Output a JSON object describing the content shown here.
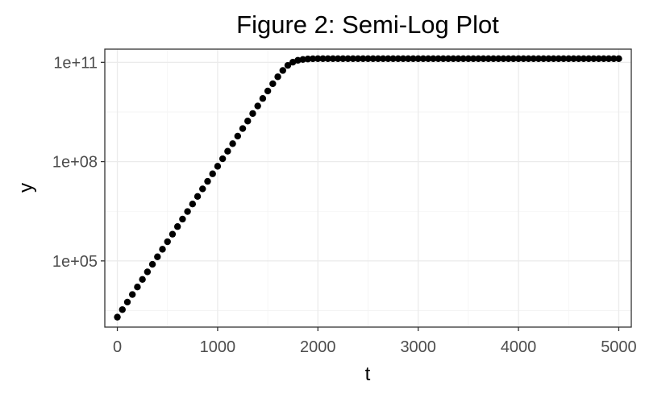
{
  "chart_data": {
    "type": "scatter",
    "title": "Figure 2: Semi-Log Plot",
    "xlabel": "t",
    "ylabel": "y",
    "y_scale": "log10",
    "xlim": [
      -125,
      5125
    ],
    "ylim": [
      1000,
      250000000000.0
    ],
    "x_ticks": [
      0,
      1000,
      2000,
      3000,
      4000,
      5000
    ],
    "x_tick_labels": [
      "0",
      "1000",
      "2000",
      "3000",
      "4000",
      "5000"
    ],
    "y_ticks": [
      100000,
      100000000,
      100000000000
    ],
    "y_tick_labels": [
      "1e+05",
      "1e+08",
      "1e+11"
    ],
    "grid": true,
    "point_color": "#000000",
    "series": [
      {
        "x": [
          0,
          50,
          100,
          150,
          200,
          250,
          300,
          350,
          400,
          450,
          500,
          550,
          600,
          650,
          700,
          750,
          800,
          850,
          900,
          950,
          1000,
          1050,
          1100,
          1150,
          1200,
          1250,
          1300,
          1350,
          1400,
          1450,
          1500,
          1550,
          1600,
          1650,
          1700,
          1750,
          1800,
          1850,
          1900,
          1950,
          2000,
          2050,
          2100,
          2150,
          2200,
          2250,
          2300,
          2350,
          2400,
          2450,
          2500,
          2550,
          2600,
          2650,
          2700,
          2750,
          2800,
          2850,
          2900,
          2950,
          3000,
          3050,
          3100,
          3150,
          3200,
          3250,
          3300,
          3350,
          3400,
          3450,
          3500,
          3550,
          3600,
          3650,
          3700,
          3750,
          3800,
          3850,
          3900,
          3950,
          4000,
          4050,
          4100,
          4150,
          4200,
          4250,
          4300,
          4350,
          4400,
          4450,
          4500,
          4550,
          4600,
          4650,
          4700,
          4750,
          4800,
          4850,
          4900,
          4950,
          5000
        ],
        "y": [
          2000,
          3380,
          5710,
          9650,
          16300,
          27600,
          46600,
          78800,
          133000,
          225000,
          380000,
          642000,
          1090000,
          1830000,
          3100000,
          5240000,
          8860000,
          15000000,
          25300000,
          42800000,
          72300000,
          122000000,
          206000000,
          349000000,
          589000000,
          996000000,
          1680000000,
          2840000000,
          4790000000,
          8080000000,
          13600000000,
          22500000000,
          36600000000,
          56700000000,
          80800000000,
          101000000000,
          115000000000,
          122000000000,
          126000000000,
          128000000000,
          129000000000,
          129000000000,
          129000000000,
          129000000000,
          129000000000,
          129000000000,
          129000000000,
          129000000000,
          129000000000,
          129000000000,
          129000000000,
          129000000000,
          129000000000,
          129000000000,
          129000000000,
          129000000000,
          129000000000,
          129000000000,
          129000000000,
          129000000000,
          129000000000,
          129000000000,
          129000000000,
          129000000000,
          129000000000,
          129000000000,
          129000000000,
          129000000000,
          129000000000,
          129000000000,
          129000000000,
          129000000000,
          129000000000,
          129000000000,
          129000000000,
          129000000000,
          129000000000,
          129000000000,
          129000000000,
          129000000000,
          129000000000,
          129000000000,
          129000000000,
          129000000000,
          129000000000,
          129000000000,
          129000000000,
          129000000000,
          129000000000,
          129000000000,
          129000000000,
          129000000000,
          129000000000,
          129000000000,
          129000000000,
          129000000000,
          129000000000,
          129000000000,
          129000000000,
          129000000000,
          129000000000
        ]
      }
    ]
  }
}
